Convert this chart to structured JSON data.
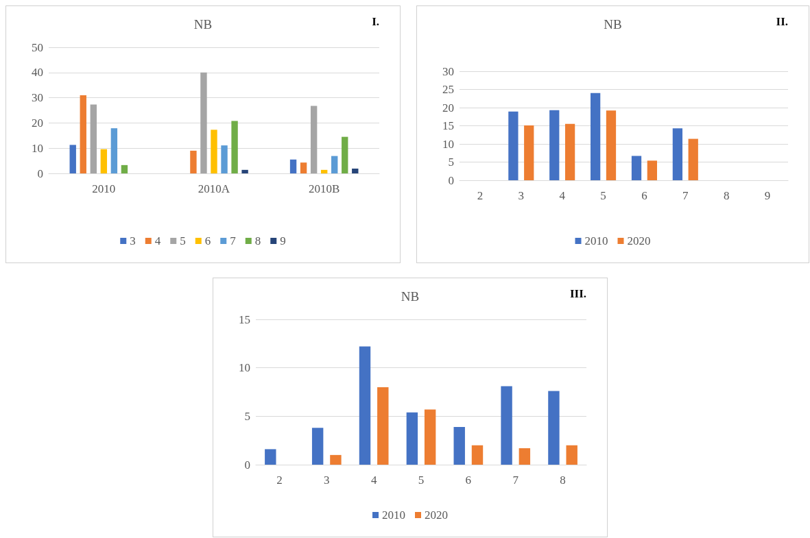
{
  "chart_data": [
    {
      "type": "bar",
      "title": "NB",
      "annotations": [
        "I."
      ],
      "categories": [
        "2010",
        "2010A",
        "2010B"
      ],
      "series": [
        {
          "name": "3",
          "color": "#4472c4",
          "values": [
            11.3,
            null,
            5.5
          ]
        },
        {
          "name": "4",
          "color": "#ed7d31",
          "values": [
            31,
            9,
            4.3
          ]
        },
        {
          "name": "5",
          "color": "#a5a5a5",
          "values": [
            27.3,
            40,
            26.8
          ]
        },
        {
          "name": "6",
          "color": "#ffc000",
          "values": [
            9.6,
            17.3,
            1.4
          ]
        },
        {
          "name": "7",
          "color": "#5b9bd5",
          "values": [
            17.9,
            11.1,
            6.9
          ]
        },
        {
          "name": "8",
          "color": "#70ad47",
          "values": [
            3.3,
            20.8,
            14.5
          ]
        },
        {
          "name": "9",
          "color": "#264478",
          "values": [
            null,
            1.4,
            1.9
          ]
        }
      ],
      "ylim": [
        0,
        50
      ],
      "yticks": [
        0,
        10,
        20,
        30,
        40,
        50
      ],
      "grid": "y",
      "legend": "bottom"
    },
    {
      "type": "bar",
      "title": "NB",
      "annotations": [
        "II."
      ],
      "categories": [
        "2",
        "3",
        "4",
        "5",
        "6",
        "7",
        "8",
        "9"
      ],
      "series": [
        {
          "name": "2010",
          "color": "#4472c4",
          "values": [
            null,
            18.9,
            19.3,
            24,
            6.7,
            14.3,
            null,
            null
          ]
        },
        {
          "name": "2020",
          "color": "#ed7d31",
          "values": [
            null,
            15.1,
            15.5,
            19.2,
            5.4,
            11.4,
            null,
            null
          ]
        }
      ],
      "ylim": [
        0,
        30
      ],
      "yticks": [
        0,
        5,
        10,
        15,
        20,
        25,
        30
      ],
      "grid": "y",
      "legend": "bottom"
    },
    {
      "type": "bar",
      "title": "NB",
      "annotations": [
        "III."
      ],
      "categories": [
        "2",
        "3",
        "4",
        "5",
        "6",
        "7",
        "8"
      ],
      "series": [
        {
          "name": "2010",
          "color": "#4472c4",
          "values": [
            1.6,
            3.8,
            12.2,
            5.4,
            3.9,
            8.1,
            7.6
          ]
        },
        {
          "name": "2020",
          "color": "#ed7d31",
          "values": [
            null,
            1,
            8,
            5.7,
            2,
            1.7,
            2
          ]
        }
      ],
      "ylim": [
        0,
        15
      ],
      "yticks": [
        0,
        5,
        10,
        15
      ],
      "grid": "y",
      "legend": "bottom"
    }
  ]
}
